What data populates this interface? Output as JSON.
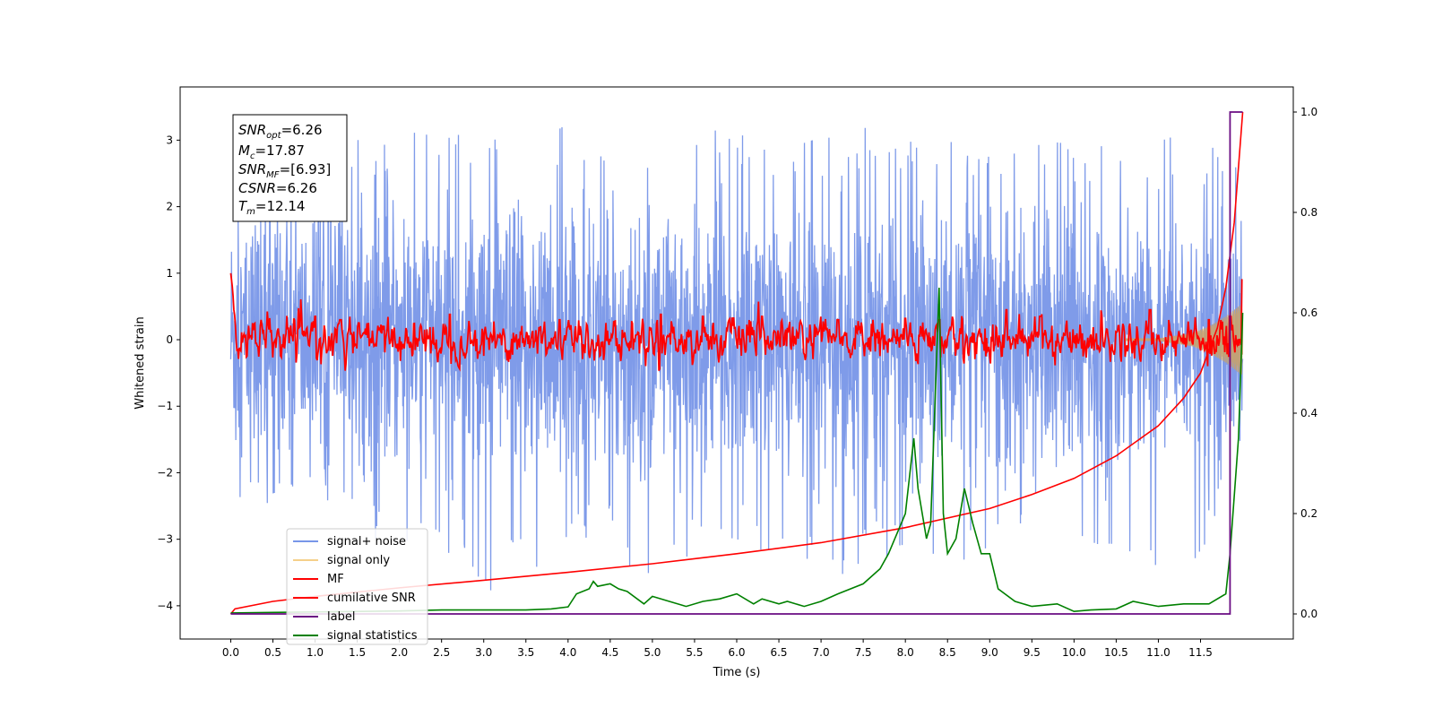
{
  "chart_data": {
    "type": "line",
    "xlabel": "Time (s)",
    "ylabel_left": "Whitened strain",
    "ylabel_right": "",
    "xlim": [
      -0.6,
      12.6
    ],
    "ylim_left": [
      -4.5,
      3.8
    ],
    "ylim_right": [
      -0.05,
      1.05
    ],
    "x_ticks": [
      0.0,
      0.5,
      1.0,
      1.5,
      2.0,
      2.5,
      3.0,
      3.5,
      4.0,
      4.5,
      5.0,
      5.5,
      6.0,
      6.5,
      7.0,
      7.5,
      8.0,
      8.5,
      9.0,
      9.5,
      10.0,
      10.5,
      11.0,
      11.5
    ],
    "x_tick_labels": [
      "0.0",
      "0.5",
      "1.0",
      "1.5",
      "2.0",
      "2.5",
      "3.0",
      "3.5",
      "4.0",
      "4.5",
      "5.0",
      "5.5",
      "6.0",
      "6.5",
      "7.0",
      "7.5",
      "8.0",
      "8.5",
      "9.0",
      "9.5",
      "10.0",
      "10.5",
      "11.0",
      "11.5"
    ],
    "y_left_ticks": [
      3,
      2,
      1,
      0,
      -1,
      -2,
      -3,
      -4
    ],
    "y_left_tick_labels": [
      "3",
      "2",
      "1",
      "0",
      "−1",
      "−2",
      "−3",
      "−4"
    ],
    "y_right_ticks": [
      1.0,
      0.8,
      0.6,
      0.4,
      0.2,
      0.0
    ],
    "y_right_tick_labels": [
      "1.0",
      "0.8",
      "0.6",
      "0.4",
      "0.2",
      "0.0"
    ],
    "grid": false,
    "legend_position": "lower-left",
    "legend": [
      {
        "label": "signal+ noise",
        "color": "#7896e8"
      },
      {
        "label": "signal only",
        "color": "#f5d08a"
      },
      {
        "label": "MF",
        "color": "#ff0000"
      },
      {
        "label": "cumilative SNR",
        "color": "#ff0000"
      },
      {
        "label": "label",
        "color": "#6a0d83"
      },
      {
        "label": "signal statistics",
        "color": "#008000"
      }
    ],
    "annotation_box": {
      "lines": [
        {
          "label": "SNR",
          "sub": "opt",
          "value": "=6.26"
        },
        {
          "label": "M",
          "sub": "c",
          "value": "=17.87"
        },
        {
          "label": "SNR",
          "sub": "MF",
          "value": "=[6.93]"
        },
        {
          "label": "CSNR",
          "sub": "",
          "value": "=6.26"
        },
        {
          "label": "T",
          "sub": "m",
          "value": "=12.14"
        }
      ]
    },
    "series": [
      {
        "name": "signal+ noise",
        "axis": "left",
        "color": "#7896e8",
        "x_range": [
          0.0,
          12.0
        ],
        "envelope_upper": [
          2.1,
          2.6,
          2.8,
          3.0,
          3.1,
          3.2,
          3.3,
          3.35,
          3.2,
          3.1,
          3.0,
          3.0,
          3.3,
          3.1,
          3.0,
          3.2,
          3.0,
          3.05,
          3.0,
          3.1,
          3.0,
          3.05,
          3.1,
          3.0,
          2.9
        ],
        "envelope_lower": [
          -2.3,
          -2.6,
          -2.9,
          -3.0,
          -3.1,
          -3.3,
          -3.8,
          -3.6,
          -3.2,
          -3.1,
          -3.8,
          -3.2,
          -3.3,
          -3.1,
          -3.7,
          -3.4,
          -3.3,
          -3.3,
          -3.5,
          -3.2,
          -3.1,
          -3.5,
          -3.6,
          -3.3,
          -2.8
        ]
      },
      {
        "name": "signal only",
        "axis": "left",
        "color": "#f5d08a",
        "x": [
          0.0,
          11.0,
          11.4,
          11.6,
          11.8,
          11.9,
          12.0
        ],
        "amplitude": [
          0.0,
          0.02,
          0.1,
          0.2,
          0.35,
          0.45,
          0.55
        ]
      },
      {
        "name": "MF",
        "axis": "left",
        "color": "#ff0000",
        "x_range": [
          0.0,
          12.0
        ],
        "start_value": 1.0,
        "spikes": [
          {
            "x": 1.0,
            "y": 0.35
          },
          {
            "x": 1.3,
            "y": 0.3
          },
          {
            "x": 2.6,
            "y": 0.38
          },
          {
            "x": 3.9,
            "y": 0.3
          },
          {
            "x": 5.1,
            "y": 0.38
          },
          {
            "x": 5.6,
            "y": 0.35
          },
          {
            "x": 6.3,
            "y": 0.35
          },
          {
            "x": 7.2,
            "y": 0.3
          },
          {
            "x": 8.0,
            "y": 0.32
          },
          {
            "x": 8.4,
            "y": 0.3
          },
          {
            "x": 9.2,
            "y": 0.45
          },
          {
            "x": 9.6,
            "y": 0.35
          },
          {
            "x": 10.9,
            "y": 0.45
          },
          {
            "x": 11.6,
            "y": 0.3
          },
          {
            "x": 11.85,
            "y": 0.35
          },
          {
            "x": 12.0,
            "y": 0.9
          }
        ],
        "noise_amplitude": 0.15
      },
      {
        "name": "cumilative SNR",
        "axis": "right",
        "color": "#ff0000",
        "x": [
          0.0,
          0.05,
          0.5,
          1.0,
          2.0,
          3.0,
          4.0,
          5.0,
          6.0,
          7.0,
          8.0,
          9.0,
          9.5,
          10.0,
          10.5,
          11.0,
          11.3,
          11.5,
          11.7,
          11.8,
          11.9,
          12.0
        ],
        "y": [
          0.0,
          0.01,
          0.025,
          0.035,
          0.052,
          0.067,
          0.083,
          0.1,
          0.12,
          0.142,
          0.172,
          0.21,
          0.238,
          0.27,
          0.315,
          0.375,
          0.43,
          0.48,
          0.57,
          0.65,
          0.78,
          1.0
        ]
      },
      {
        "name": "label",
        "axis": "right",
        "color": "#6a0d83",
        "x": [
          0.0,
          11.85,
          11.85,
          12.0
        ],
        "y": [
          0.0,
          0.0,
          1.0,
          1.0
        ]
      },
      {
        "name": "signal statistics",
        "axis": "right",
        "color": "#008000",
        "x": [
          0.0,
          0.5,
          1.0,
          2.0,
          2.5,
          3.0,
          3.5,
          3.8,
          4.0,
          4.1,
          4.25,
          4.3,
          4.35,
          4.5,
          4.6,
          4.7,
          4.9,
          5.0,
          5.2,
          5.4,
          5.6,
          5.8,
          6.0,
          6.2,
          6.3,
          6.5,
          6.6,
          6.8,
          7.0,
          7.2,
          7.5,
          7.7,
          7.8,
          8.0,
          8.1,
          8.15,
          8.25,
          8.3,
          8.4,
          8.45,
          8.5,
          8.6,
          8.7,
          8.8,
          8.9,
          9.0,
          9.1,
          9.3,
          9.5,
          9.8,
          10.0,
          10.2,
          10.5,
          10.7,
          11.0,
          11.3,
          11.6,
          11.8,
          11.85,
          11.95,
          12.0
        ],
        "y": [
          0.002,
          0.003,
          0.004,
          0.006,
          0.008,
          0.008,
          0.008,
          0.01,
          0.014,
          0.04,
          0.05,
          0.065,
          0.055,
          0.06,
          0.05,
          0.045,
          0.02,
          0.035,
          0.025,
          0.015,
          0.025,
          0.03,
          0.04,
          0.02,
          0.03,
          0.02,
          0.025,
          0.015,
          0.025,
          0.04,
          0.06,
          0.09,
          0.12,
          0.2,
          0.35,
          0.25,
          0.15,
          0.18,
          0.65,
          0.2,
          0.12,
          0.15,
          0.25,
          0.18,
          0.12,
          0.12,
          0.05,
          0.025,
          0.015,
          0.02,
          0.005,
          0.008,
          0.01,
          0.025,
          0.015,
          0.02,
          0.02,
          0.04,
          0.12,
          0.35,
          0.6
        ]
      }
    ]
  }
}
